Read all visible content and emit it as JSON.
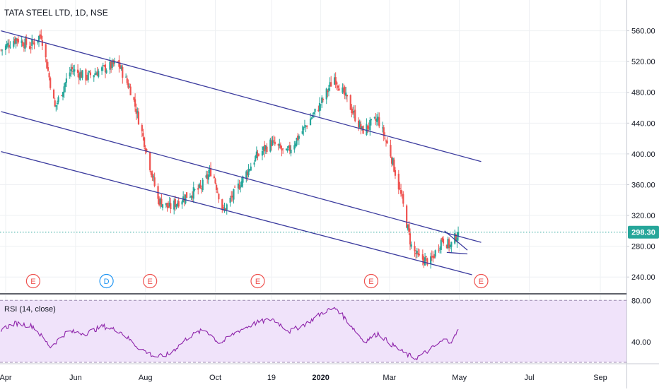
{
  "title": "TATA STEEL LTD, 1D, NSE",
  "rsi_label": "RSI (14, close)",
  "colors": {
    "up": "#26a69a",
    "down": "#ef5350",
    "channel": "#3b3b9e",
    "rsi_line": "#8e24aa",
    "rsi_band": "#f0e3fa",
    "price_line": "#26a69a",
    "event_earnings": "#ef5350",
    "event_dividend": "#2196f3"
  },
  "chart_data": [
    {
      "type": "candlestick",
      "ylim": [
        220,
        600
      ],
      "y_ticks": [
        "560.00",
        "520.00",
        "480.00",
        "440.00",
        "400.00",
        "360.00",
        "320.00",
        "280.00",
        "240.00"
      ],
      "y_tick_values": [
        560,
        520,
        480,
        440,
        400,
        360,
        320,
        280,
        240
      ],
      "x_ticks": [
        "Apr",
        "Jun",
        "Aug",
        "Oct",
        "19",
        "2020",
        "Mar",
        "May",
        "Jul",
        "Sep"
      ],
      "x_tick_dates": [
        "2019-04-01",
        "2019-06-01",
        "2019-08-01",
        "2019-10-01",
        "2019-11-19",
        "2020-01-01",
        "2020-03-01",
        "2020-05-01",
        "2020-07-01",
        "2020-09-01"
      ],
      "last_price": "298.30",
      "last_price_value": 298.3,
      "close_path": [
        {
          "date": "2019-03-28",
          "close": 535
        },
        {
          "date": "2019-04-10",
          "close": 550
        },
        {
          "date": "2019-04-22",
          "close": 540
        },
        {
          "date": "2019-05-02",
          "close": 555
        },
        {
          "date": "2019-05-14",
          "close": 460
        },
        {
          "date": "2019-05-28",
          "close": 510
        },
        {
          "date": "2019-06-10",
          "close": 500
        },
        {
          "date": "2019-06-25",
          "close": 510
        },
        {
          "date": "2019-07-08",
          "close": 518
        },
        {
          "date": "2019-07-20",
          "close": 480
        },
        {
          "date": "2019-08-01",
          "close": 410
        },
        {
          "date": "2019-08-12",
          "close": 340
        },
        {
          "date": "2019-08-22",
          "close": 330
        },
        {
          "date": "2019-09-05",
          "close": 345
        },
        {
          "date": "2019-09-18",
          "close": 355
        },
        {
          "date": "2019-09-28",
          "close": 380
        },
        {
          "date": "2019-10-08",
          "close": 325
        },
        {
          "date": "2019-10-22",
          "close": 360
        },
        {
          "date": "2019-11-05",
          "close": 395
        },
        {
          "date": "2019-11-19",
          "close": 415
        },
        {
          "date": "2019-12-02",
          "close": 400
        },
        {
          "date": "2019-12-16",
          "close": 430
        },
        {
          "date": "2020-01-01",
          "close": 465
        },
        {
          "date": "2020-01-13",
          "close": 500
        },
        {
          "date": "2020-01-24",
          "close": 470
        },
        {
          "date": "2020-02-06",
          "close": 430
        },
        {
          "date": "2020-02-20",
          "close": 445
        },
        {
          "date": "2020-03-02",
          "close": 400
        },
        {
          "date": "2020-03-12",
          "close": 340
        },
        {
          "date": "2020-03-20",
          "close": 280
        },
        {
          "date": "2020-03-26",
          "close": 265
        },
        {
          "date": "2020-04-06",
          "close": 260
        },
        {
          "date": "2020-04-16",
          "close": 290
        },
        {
          "date": "2020-04-23",
          "close": 280
        },
        {
          "date": "2020-04-30",
          "close": 298.3
        }
      ],
      "channel_lines": [
        {
          "start": {
            "date": "2019-03-28",
            "price": 560
          },
          "end": {
            "date": "2020-05-20",
            "price": 390
          }
        },
        {
          "start": {
            "date": "2019-03-28",
            "price": 455
          },
          "end": {
            "date": "2020-05-20",
            "price": 285
          }
        },
        {
          "start": {
            "date": "2019-03-28",
            "price": 403
          },
          "end": {
            "date": "2020-05-12",
            "price": 243
          }
        },
        {
          "start": {
            "date": "2020-04-18",
            "price": 300
          },
          "end": {
            "date": "2020-05-08",
            "price": 275
          }
        },
        {
          "start": {
            "date": "2020-04-20",
            "price": 272
          },
          "end": {
            "date": "2020-05-08",
            "price": 270
          }
        }
      ],
      "events": [
        {
          "label": "E",
          "date": "2019-04-25"
        },
        {
          "label": "D",
          "date": "2019-06-28"
        },
        {
          "label": "E",
          "date": "2019-08-05"
        },
        {
          "label": "E",
          "date": "2019-11-07"
        },
        {
          "label": "E",
          "date": "2020-02-14"
        },
        {
          "label": "E",
          "date": "2020-05-20"
        }
      ]
    },
    {
      "type": "line",
      "name": "RSI (14, close)",
      "ylim": [
        20,
        85
      ],
      "band": [
        20,
        80
      ],
      "y_ticks": [
        "80.00",
        "40.00"
      ],
      "y_tick_values": [
        80,
        40
      ],
      "values_path": [
        {
          "date": "2019-03-28",
          "value": 52
        },
        {
          "date": "2019-04-10",
          "value": 58
        },
        {
          "date": "2019-04-25",
          "value": 55
        },
        {
          "date": "2019-05-10",
          "value": 35
        },
        {
          "date": "2019-05-25",
          "value": 50
        },
        {
          "date": "2019-06-10",
          "value": 48
        },
        {
          "date": "2019-06-25",
          "value": 55
        },
        {
          "date": "2019-07-10",
          "value": 50
        },
        {
          "date": "2019-07-25",
          "value": 35
        },
        {
          "date": "2019-08-10",
          "value": 25
        },
        {
          "date": "2019-08-22",
          "value": 28
        },
        {
          "date": "2019-09-08",
          "value": 45
        },
        {
          "date": "2019-09-22",
          "value": 52
        },
        {
          "date": "2019-10-05",
          "value": 38
        },
        {
          "date": "2019-10-20",
          "value": 50
        },
        {
          "date": "2019-11-05",
          "value": 58
        },
        {
          "date": "2019-11-20",
          "value": 62
        },
        {
          "date": "2019-12-05",
          "value": 50
        },
        {
          "date": "2019-12-20",
          "value": 58
        },
        {
          "date": "2020-01-05",
          "value": 70
        },
        {
          "date": "2020-01-15",
          "value": 72
        },
        {
          "date": "2020-01-28",
          "value": 55
        },
        {
          "date": "2020-02-08",
          "value": 40
        },
        {
          "date": "2020-02-20",
          "value": 48
        },
        {
          "date": "2020-03-02",
          "value": 38
        },
        {
          "date": "2020-03-15",
          "value": 28
        },
        {
          "date": "2020-03-24",
          "value": 24
        },
        {
          "date": "2020-04-05",
          "value": 32
        },
        {
          "date": "2020-04-18",
          "value": 42
        },
        {
          "date": "2020-04-25",
          "value": 40
        },
        {
          "date": "2020-04-30",
          "value": 52
        }
      ]
    }
  ]
}
